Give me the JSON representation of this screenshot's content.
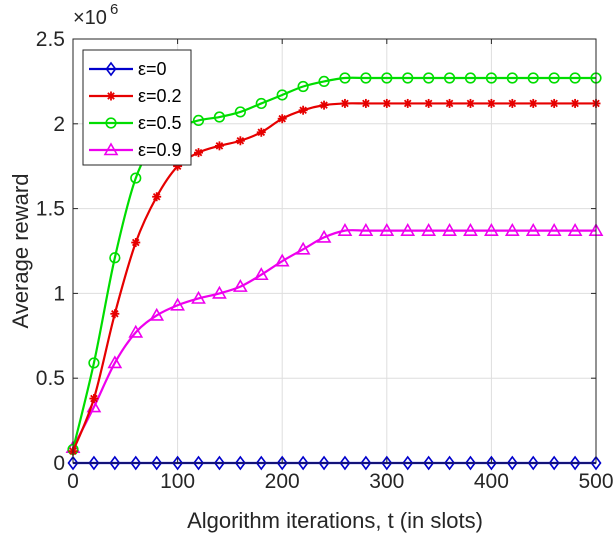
{
  "chart_data": {
    "type": "line",
    "xlabel": "Algorithm iterations, t (in slots)",
    "ylabel": "Average reward",
    "y_multiplier": "×10",
    "y_multiplier_exp": "6",
    "xlim": [
      0,
      500
    ],
    "ylim": [
      0,
      2.5
    ],
    "x_ticks": [
      0,
      100,
      200,
      300,
      400,
      500
    ],
    "x_tick_labels": [
      "0",
      "100",
      "200",
      "300",
      "400",
      "500"
    ],
    "y_ticks": [
      0,
      0.5,
      1,
      1.5,
      2,
      2.5
    ],
    "y_tick_labels": [
      "0",
      "0.5",
      "1",
      "1.5",
      "2",
      "2.5"
    ],
    "grid": true,
    "legend_position": "top-left",
    "x": [
      0,
      20,
      40,
      60,
      80,
      100,
      120,
      140,
      160,
      180,
      200,
      220,
      240,
      260,
      280,
      300,
      320,
      340,
      360,
      380,
      400,
      420,
      440,
      460,
      480,
      500
    ],
    "series": [
      {
        "name": "ε=0",
        "color": "#0000cc",
        "marker": "diamond",
        "values": [
          0.0,
          0.0,
          0.0,
          0.0,
          0.0,
          0.0,
          0.0,
          0.0,
          0.0,
          0.0,
          0.0,
          0.0,
          0.0,
          0.0,
          0.0,
          0.0,
          0.0,
          0.0,
          0.0,
          0.0,
          0.0,
          0.0,
          0.0,
          0.0,
          0.0,
          0.0
        ]
      },
      {
        "name": "ε=0.2",
        "color": "#e60000",
        "marker": "asterisk",
        "values": [
          0.07,
          0.38,
          0.88,
          1.3,
          1.57,
          1.75,
          1.83,
          1.87,
          1.9,
          1.95,
          2.03,
          2.08,
          2.11,
          2.12,
          2.12,
          2.12,
          2.12,
          2.12,
          2.12,
          2.12,
          2.12,
          2.12,
          2.12,
          2.12,
          2.12,
          2.12
        ]
      },
      {
        "name": "ε=0.5",
        "color": "#00dd00",
        "marker": "circle",
        "values": [
          0.08,
          0.59,
          1.21,
          1.68,
          1.9,
          1.98,
          2.02,
          2.04,
          2.07,
          2.12,
          2.17,
          2.22,
          2.25,
          2.27,
          2.27,
          2.27,
          2.27,
          2.27,
          2.27,
          2.27,
          2.27,
          2.27,
          2.27,
          2.27,
          2.27,
          2.27
        ]
      },
      {
        "name": "ε=0.9",
        "color": "#ee00ee",
        "marker": "triangle",
        "values": [
          0.09,
          0.33,
          0.59,
          0.77,
          0.87,
          0.93,
          0.97,
          1.0,
          1.04,
          1.11,
          1.19,
          1.26,
          1.33,
          1.37,
          1.37,
          1.37,
          1.37,
          1.37,
          1.37,
          1.37,
          1.37,
          1.37,
          1.37,
          1.37,
          1.37,
          1.37
        ]
      }
    ]
  }
}
